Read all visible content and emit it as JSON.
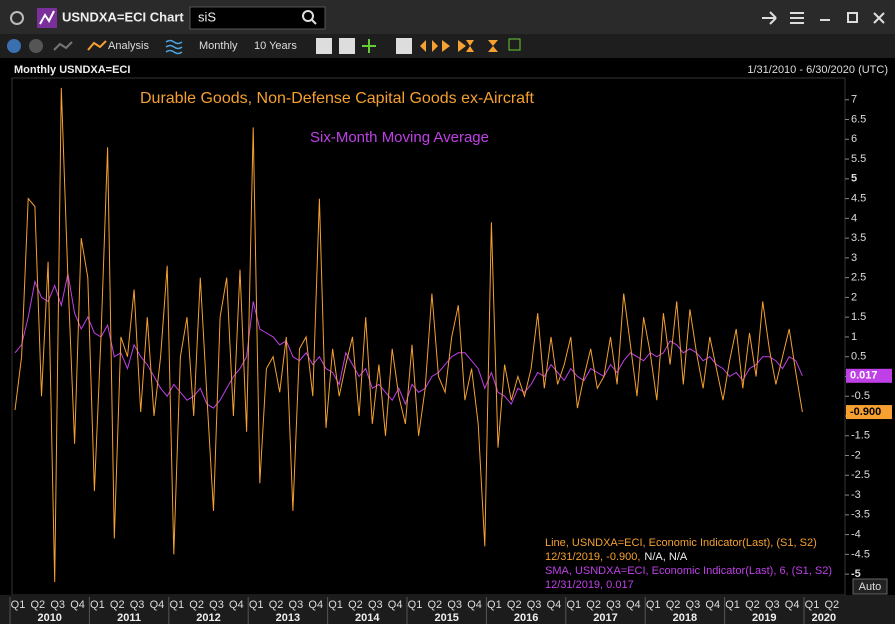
{
  "window": {
    "title": "USNDXA=ECI Chart",
    "search": "siS",
    "toolbar": [
      "Analysis",
      "Monthly",
      "10 Years"
    ]
  },
  "chart_data": {
    "type": "line",
    "title": "Monthly USNDXA=ECI",
    "date_range": "1/31/2010 - 6/30/2020 (UTC)",
    "annotations": [
      "Durable Goods, Non-Defense Capital Goods ex-Aircraft",
      "Six-Month Moving Average"
    ],
    "quarters": [
      "Q1",
      "Q2",
      "Q3",
      "Q4",
      "Q1",
      "Q2",
      "Q3",
      "Q4",
      "Q1",
      "Q2",
      "Q3",
      "Q4",
      "Q1",
      "Q2",
      "Q3",
      "Q4",
      "Q1",
      "Q2",
      "Q3",
      "Q4",
      "Q1",
      "Q2",
      "Q3",
      "Q4",
      "Q1",
      "Q2",
      "Q3",
      "Q4",
      "Q1",
      "Q2",
      "Q3",
      "Q4",
      "Q1",
      "Q2",
      "Q3",
      "Q4",
      "Q1",
      "Q2",
      "Q3",
      "Q4",
      "Q1",
      "Q2"
    ],
    "years": [
      "2010",
      "2011",
      "2012",
      "2013",
      "2014",
      "2015",
      "2016",
      "2017",
      "2018",
      "2019",
      "2020"
    ],
    "ylim": [
      -5.25,
      7.5
    ],
    "yticks": [
      -5,
      -4.5,
      -4,
      -3.5,
      -3,
      -2.5,
      -2,
      -1.5,
      -1,
      -0.5,
      0,
      0.5,
      1,
      1.5,
      2,
      2.5,
      3,
      3.5,
      4,
      4.5,
      5,
      5.5,
      6,
      6.5,
      7
    ],
    "major_yticks": [
      -5,
      5
    ],
    "auto": "Auto",
    "series": [
      {
        "name": "Line, USNDXA=ECI, Economic Indicator(Last), (S1, S2)",
        "detail": "12/31/2019, -0.900,",
        "extra": "N/A, N/A",
        "tag": "-0.900",
        "color": "#f5a030",
        "values": [
          -0.85,
          0.5,
          4.5,
          4.3,
          -0.5,
          2.9,
          -5.2,
          7.3,
          2.5,
          -1.7,
          3.5,
          2.5,
          -2.9,
          1.0,
          5.8,
          -4.1,
          1.0,
          0.5,
          2.2,
          -0.9,
          1.5,
          -1.0,
          0.5,
          2.8,
          -4.5,
          0.5,
          1.5,
          -1.0,
          2.5,
          -0.5,
          -3.4,
          1.5,
          2.5,
          -1.0,
          2.7,
          -1.4,
          6.3,
          -2.7,
          0.2,
          0.5,
          -0.4,
          1.0,
          -3.4,
          0.7,
          1.0,
          -0.5,
          4.5,
          -1.3,
          0.7,
          -0.5,
          0.3,
          1.0,
          -1.0,
          1.5,
          -1.2,
          0.3,
          -1.5,
          0.7,
          -0.5,
          -1.2,
          0.8,
          -1.5,
          -0.3,
          2.1,
          0.0,
          -0.4,
          1.0,
          1.8,
          -0.6,
          0.2,
          -1.2,
          -4.3,
          3.9,
          -1.8,
          0.3,
          -0.6,
          0.0,
          -0.5,
          0.2,
          1.6,
          -0.3,
          1.0,
          -0.2,
          0.3,
          1.0,
          -0.8,
          0.0,
          0.7,
          -0.3,
          0.0,
          1.0,
          -0.2,
          2.1,
          0.8,
          -0.5,
          1.5,
          0.6,
          -0.6,
          1.6,
          0.3,
          1.9,
          -0.2,
          1.7,
          0.6,
          -0.3,
          1.0,
          0.2,
          -0.6,
          0.4,
          1.2,
          -0.3,
          1.1,
          0.0,
          1.9,
          0.7,
          -0.2,
          0.5,
          1.2,
          0.1,
          -0.9
        ]
      },
      {
        "name": "SMA, USNDXA=ECI, Economic Indicator(Last),  6, (S1, S2)",
        "detail": "12/31/2019, 0.017",
        "tag": "0.017",
        "color": "#c040e8",
        "values": [
          0.6,
          0.8,
          1.5,
          2.4,
          2.0,
          1.9,
          2.3,
          1.8,
          2.6,
          1.6,
          1.2,
          1.5,
          1.1,
          1.0,
          1.3,
          0.5,
          0.6,
          0.2,
          0.8,
          0.5,
          0.3,
          0.0,
          -0.3,
          -0.5,
          -0.2,
          -0.4,
          -0.6,
          -0.5,
          -0.3,
          -0.7,
          -0.8,
          -0.6,
          -0.3,
          0.0,
          0.2,
          0.5,
          1.9,
          1.2,
          1.1,
          1.0,
          0.8,
          0.9,
          0.5,
          0.4,
          0.6,
          0.3,
          0.5,
          0.2,
          0.1,
          -0.2,
          0.6,
          0.3,
          0.0,
          0.2,
          -0.3,
          -0.2,
          -0.4,
          -0.6,
          -0.3,
          -0.7,
          -0.2,
          -0.4,
          -0.3,
          0.0,
          0.1,
          0.3,
          0.5,
          0.6,
          0.6,
          0.4,
          0.2,
          -0.3,
          0.1,
          -0.4,
          -0.5,
          -0.7,
          -0.3,
          -0.4,
          -0.2,
          0.1,
          0.0,
          0.3,
          0.1,
          -0.1,
          0.2,
          0.0,
          -0.1,
          0.2,
          0.1,
          0.0,
          0.3,
          0.1,
          0.4,
          0.6,
          0.5,
          0.4,
          0.6,
          0.5,
          0.6,
          0.9,
          0.8,
          0.6,
          0.7,
          0.6,
          0.4,
          0.5,
          0.3,
          0.2,
          0.0,
          0.1,
          -0.1,
          0.2,
          0.3,
          0.5,
          0.5,
          0.4,
          0.2,
          0.5,
          0.4,
          0.017
        ]
      }
    ]
  }
}
